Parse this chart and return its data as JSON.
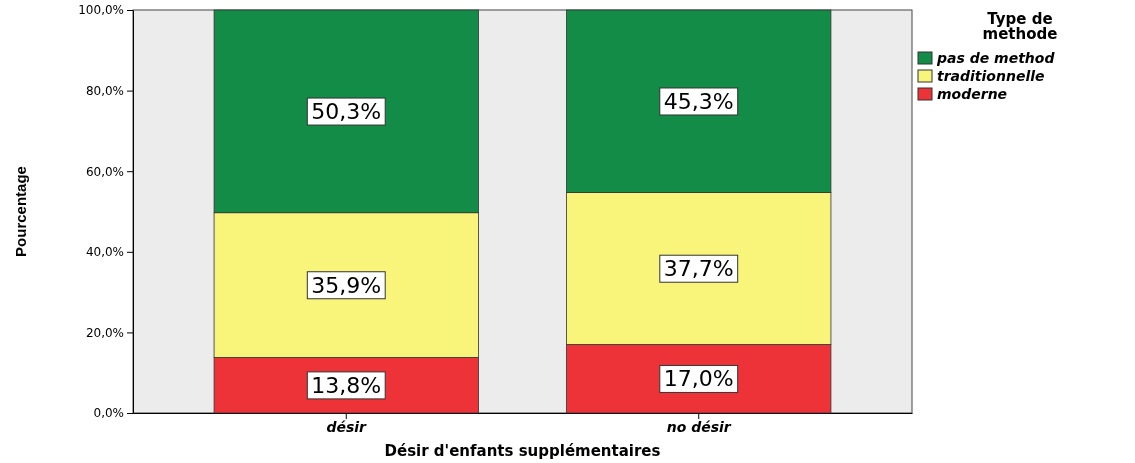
{
  "chart_data": {
    "type": "bar",
    "stacked": true,
    "xlabel": "Désir d'enfants supplémentaires",
    "ylabel": "Pourcentage",
    "legend_title": "Type de methode",
    "categories": [
      "désir",
      "no désir"
    ],
    "series": [
      {
        "name": "moderne",
        "color": "#ee3338",
        "values": [
          13.8,
          17.0
        ],
        "value_labels": [
          "13,8%",
          "17,0%"
        ]
      },
      {
        "name": "traditionnelle",
        "color": "#f8f57a",
        "values": [
          35.9,
          37.7
        ],
        "value_labels": [
          "35,9%",
          "37,7%"
        ]
      },
      {
        "name": "pas de method",
        "color": "#128c46",
        "values": [
          50.3,
          45.3
        ],
        "value_labels": [
          "50,3%",
          "45,3%"
        ]
      }
    ],
    "ylim": [
      0,
      100
    ],
    "yticks": [
      {
        "value": 0,
        "label": "0,0%"
      },
      {
        "value": 20,
        "label": "20,0%"
      },
      {
        "value": 40,
        "label": "40,0%"
      },
      {
        "value": 60,
        "label": "60,0%"
      },
      {
        "value": 80,
        "label": "80,0%"
      },
      {
        "value": 100,
        "label": "100,0%"
      }
    ],
    "legend": "top right",
    "grid": false
  }
}
